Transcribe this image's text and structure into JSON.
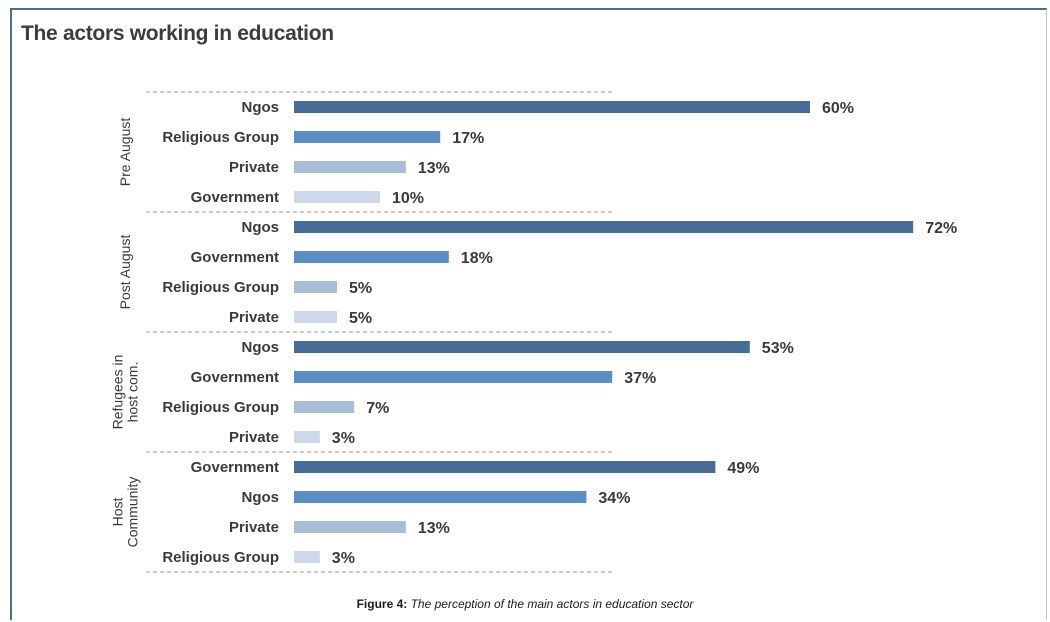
{
  "title": "The actors working in education",
  "caption": {
    "prefix": "Figure 4:",
    "text": "The perception of the main actors in education sector"
  },
  "colors": {
    "frame": "#4a6f97",
    "rank_shades": [
      "#476d97",
      "#5b8ec4",
      "#a9bcd8",
      "#cdd8ea"
    ],
    "text": "#3a3a3a"
  },
  "chart_data": {
    "type": "bar",
    "orientation": "horizontal",
    "xlim": [
      0,
      100
    ],
    "value_suffix": "%",
    "groups": [
      {
        "name": "Pre August",
        "bars": [
          {
            "label": "Ngos",
            "value": 60
          },
          {
            "label": "Religious Group",
            "value": 17
          },
          {
            "label": "Private",
            "value": 13
          },
          {
            "label": "Government",
            "value": 10
          }
        ]
      },
      {
        "name": "Post August",
        "bars": [
          {
            "label": "Ngos",
            "value": 72
          },
          {
            "label": "Government",
            "value": 18
          },
          {
            "label": "Religious Group",
            "value": 5
          },
          {
            "label": "Private",
            "value": 5
          }
        ]
      },
      {
        "name": "Refugees in host com.",
        "name_lines": [
          "Refugees in",
          "host com."
        ],
        "bars": [
          {
            "label": "Ngos",
            "value": 53
          },
          {
            "label": "Government",
            "value": 37
          },
          {
            "label": "Religious Group",
            "value": 7
          },
          {
            "label": "Private",
            "value": 3
          }
        ]
      },
      {
        "name": "Host Community",
        "name_lines": [
          "Host",
          "Community"
        ],
        "bars": [
          {
            "label": "Government",
            "value": 49
          },
          {
            "label": "Ngos",
            "value": 34
          },
          {
            "label": "Private",
            "value": 13
          },
          {
            "label": "Religious Group",
            "value": 3
          }
        ]
      }
    ]
  }
}
